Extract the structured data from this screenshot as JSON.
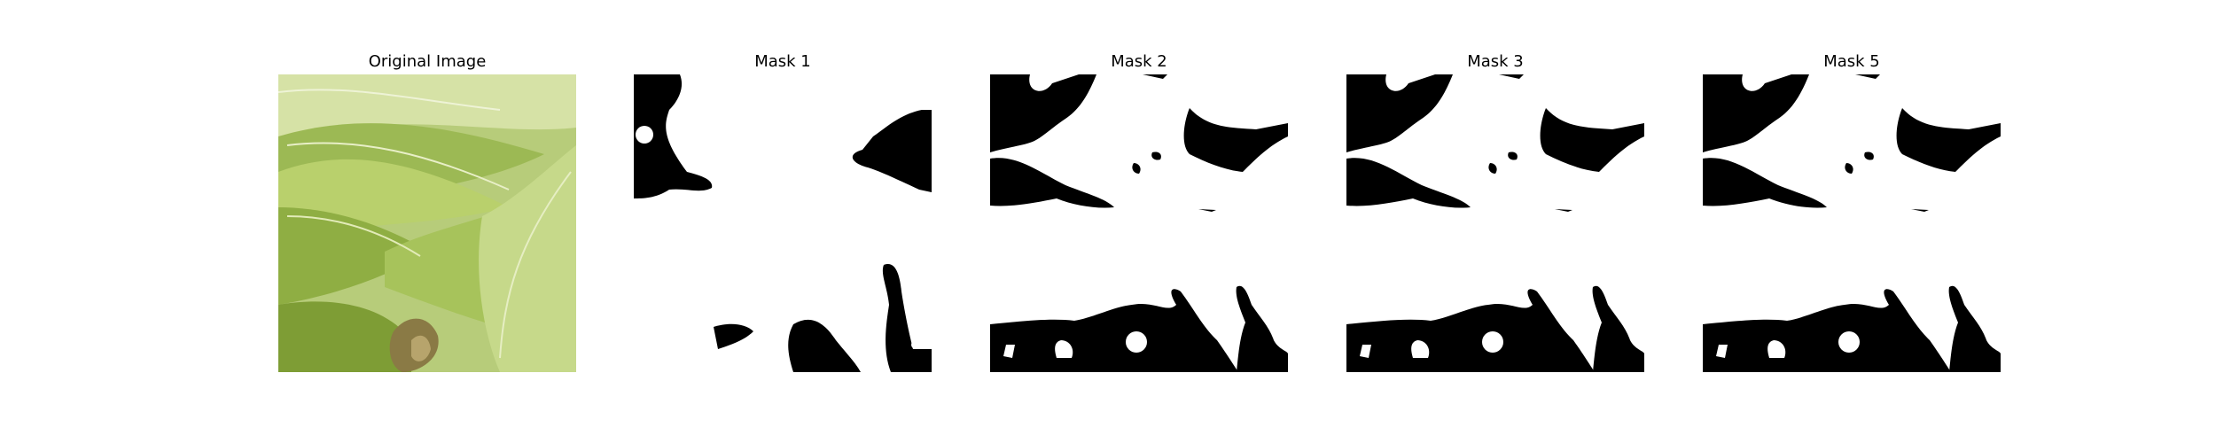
{
  "figure": {
    "panels": [
      {
        "title": "Original Image",
        "kind": "photo",
        "subject": "green-leaves-photo"
      },
      {
        "title": "Mask 1",
        "kind": "mask"
      },
      {
        "title": "Mask 2",
        "kind": "mask"
      },
      {
        "title": "Mask 3",
        "kind": "mask"
      },
      {
        "title": "Mask 5",
        "kind": "mask"
      }
    ],
    "colors": {
      "mask_foreground": "#000000",
      "mask_background": "#ffffff",
      "leaf_light": "#c9d98a",
      "leaf_mid": "#9fbc4f",
      "leaf_dark": "#5f7f24"
    }
  }
}
